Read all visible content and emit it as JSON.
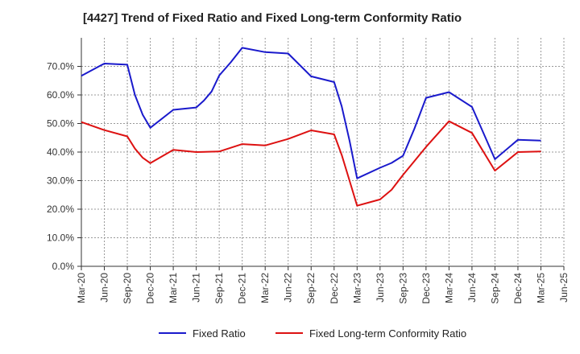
{
  "chart_data": {
    "type": "line",
    "title": "[4427]  Trend of Fixed Ratio and Fixed Long-term Conformity Ratio",
    "xlabel": "",
    "ylabel": "",
    "ylim": [
      0,
      0.8
    ],
    "yticks": [
      "0.0%",
      "10.0%",
      "20.0%",
      "30.0%",
      "40.0%",
      "50.0%",
      "60.0%",
      "70.0%"
    ],
    "categories": [
      "Mar-20",
      "Jun-20",
      "Sep-20",
      "Dec-20",
      "Mar-21",
      "Jun-21",
      "Sep-21",
      "Dec-21",
      "Mar-22",
      "Jun-22",
      "Sep-22",
      "Dec-22",
      "Mar-23",
      "Jun-23",
      "Sep-23",
      "Dec-23",
      "Mar-24",
      "Jun-24",
      "Sep-24",
      "Dec-24",
      "Mar-25",
      "Jun-25"
    ],
    "grid": true,
    "legend_position": "bottom",
    "series": [
      {
        "name": "Fixed Ratio",
        "color": "#1a1acc",
        "points": [
          [
            0,
            0.667
          ],
          [
            1,
            0.71
          ],
          [
            2,
            0.706
          ],
          [
            2.33,
            0.6
          ],
          [
            2.67,
            0.53
          ],
          [
            3,
            0.485
          ],
          [
            4,
            0.548
          ],
          [
            5,
            0.556
          ],
          [
            5.33,
            0.58
          ],
          [
            5.67,
            0.612
          ],
          [
            6,
            0.668
          ],
          [
            6.5,
            0.714
          ],
          [
            7,
            0.765
          ],
          [
            8,
            0.75
          ],
          [
            9,
            0.745
          ],
          [
            10,
            0.665
          ],
          [
            11,
            0.645
          ],
          [
            11.33,
            0.56
          ],
          [
            11.67,
            0.44
          ],
          [
            12,
            0.308
          ],
          [
            13,
            0.345
          ],
          [
            13.5,
            0.362
          ],
          [
            14,
            0.387
          ],
          [
            14.5,
            0.483
          ],
          [
            15,
            0.59
          ],
          [
            16,
            0.61
          ],
          [
            17,
            0.558
          ],
          [
            18,
            0.375
          ],
          [
            19,
            0.443
          ],
          [
            20,
            0.44
          ]
        ]
      },
      {
        "name": "Fixed Long-term Conformity Ratio",
        "color": "#dd1111",
        "points": [
          [
            0,
            0.505
          ],
          [
            1,
            0.477
          ],
          [
            2,
            0.455
          ],
          [
            2.33,
            0.412
          ],
          [
            2.67,
            0.38
          ],
          [
            3,
            0.361
          ],
          [
            4,
            0.408
          ],
          [
            5,
            0.4
          ],
          [
            6,
            0.402
          ],
          [
            7,
            0.428
          ],
          [
            8,
            0.423
          ],
          [
            9,
            0.446
          ],
          [
            10,
            0.476
          ],
          [
            11,
            0.462
          ],
          [
            11.33,
            0.39
          ],
          [
            11.67,
            0.3
          ],
          [
            12,
            0.212
          ],
          [
            13,
            0.234
          ],
          [
            13.5,
            0.268
          ],
          [
            14,
            0.32
          ],
          [
            15,
            0.418
          ],
          [
            16,
            0.508
          ],
          [
            17,
            0.467
          ],
          [
            18,
            0.335
          ],
          [
            19,
            0.4
          ],
          [
            20,
            0.402
          ]
        ]
      }
    ]
  }
}
